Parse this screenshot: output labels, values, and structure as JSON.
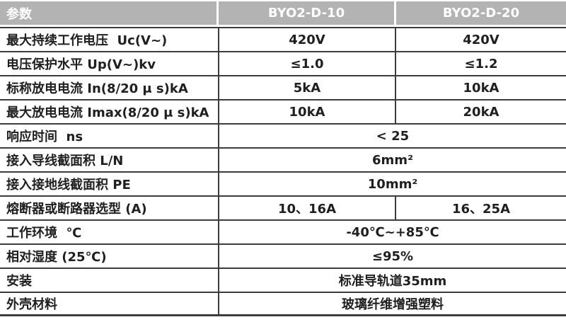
{
  "colors": {
    "header_bg": "#b3b3b3",
    "header_text": "#ffffff",
    "border": "#3d3d3d",
    "text": "#1f1f1f",
    "page_bg": "#ffffff"
  },
  "table": {
    "header": {
      "param": "参数",
      "col1": "BYO2-D-10",
      "col2": "BYO2-D-20"
    },
    "rows": [
      {
        "label": "最大持续工作电压  Uc(V~)",
        "values": [
          "420V",
          "420V"
        ]
      },
      {
        "label": "电压保护水平 Up(V~)kv",
        "values": [
          "≤1.0",
          "≤1.2"
        ]
      },
      {
        "label": "标称放电电流 In(8/20 μ s)kA",
        "values": [
          "5kA",
          "10kA"
        ]
      },
      {
        "label": "最大放电电流 Imax(8/20 μ s)kA",
        "values": [
          "10kA",
          "20kA"
        ]
      },
      {
        "label": "响应时间  ns",
        "values": [
          "< 25"
        ]
      },
      {
        "label": "接入导线截面积 L/N",
        "values": [
          "6mm²"
        ]
      },
      {
        "label": "接入接地线截面积 PE",
        "values": [
          "10mm²"
        ]
      },
      {
        "label": "熔断器或断路器选型 (A)",
        "values": [
          "10、16A",
          "16、25A"
        ]
      },
      {
        "label": "工作环境  ℃",
        "values": [
          "-40℃~+85℃"
        ]
      },
      {
        "label": "相对湿度 (25℃)",
        "values": [
          "≤95%"
        ]
      },
      {
        "label": "安装",
        "values": [
          "标准导轨道35mm"
        ]
      },
      {
        "label": "外壳材料",
        "values": [
          "玻璃纤维增强塑料"
        ]
      }
    ]
  }
}
